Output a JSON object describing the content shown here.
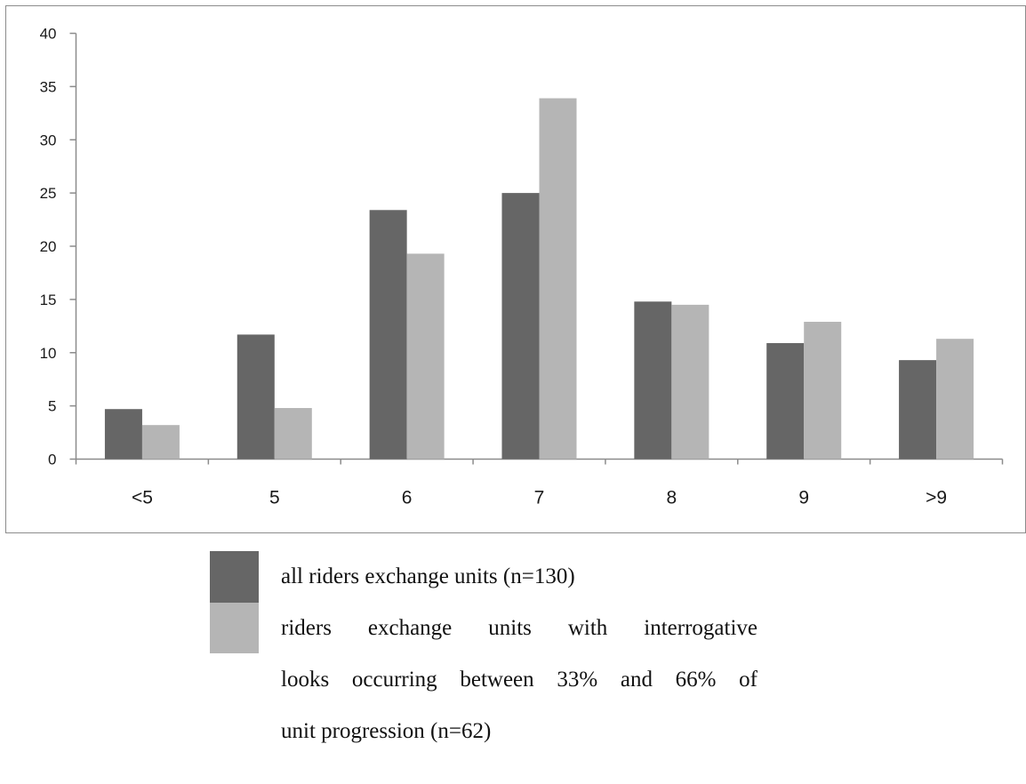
{
  "colors": {
    "series_dark": "#666666",
    "series_light": "#b5b5b5",
    "axis": "#8c8c8c",
    "text": "#1a1a1a"
  },
  "chart_data": {
    "type": "bar",
    "categories": [
      "<5",
      "5",
      "6",
      "7",
      "8",
      "9",
      ">9"
    ],
    "series": [
      {
        "values": [
          4.7,
          11.7,
          23.4,
          25.0,
          14.8,
          10.9,
          9.3
        ]
      },
      {
        "values": [
          3.2,
          4.8,
          19.3,
          33.9,
          14.5,
          12.9,
          11.3
        ]
      }
    ],
    "ylim": [
      0,
      40
    ],
    "yticks": [
      "0",
      "5",
      "10",
      "15",
      "20",
      "25",
      "30",
      "35",
      "40"
    ],
    "grid": false,
    "legend_position": "bottom"
  },
  "legend": {
    "items": [
      {
        "color": "#666666",
        "lines": [
          "all riders exchange units (n=130)"
        ]
      },
      {
        "color": "#b5b5b5",
        "lines": [
          "riders exchange units with interrogative",
          "looks occurring between 33% and 66% of",
          "unit progression (n=62)"
        ]
      }
    ]
  }
}
